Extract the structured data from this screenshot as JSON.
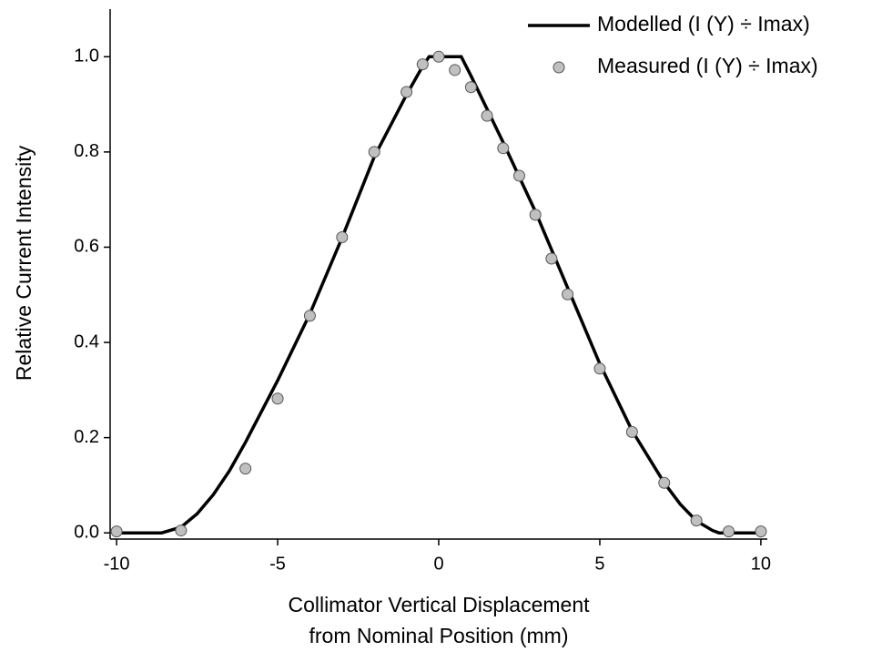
{
  "chart_data": {
    "type": "line_scatter",
    "xlabel": [
      "Collimator Vertical Displacement",
      "from Nominal Position (mm)"
    ],
    "ylabel": "Relative Current Intensity",
    "xlim": [
      -10.2,
      10.2
    ],
    "ylim": [
      -0.013,
      1.1
    ],
    "xticks": [
      -10,
      -5,
      0,
      5,
      10
    ],
    "yticks": [
      {
        "value": 0,
        "label": "0.0"
      },
      0.2,
      0.4,
      0.6,
      0.8,
      {
        "value": 1,
        "label": "1.0"
      }
    ],
    "grid": false,
    "legend": "upper right",
    "series": [
      {
        "name": "Modelled (I (Y) ÷ Imax)",
        "kind": "line",
        "color": "#000000",
        "x": [
          -10,
          -9,
          -8.6,
          -8,
          -7.5,
          -7,
          -6.5,
          -6,
          -5,
          -4,
          -3,
          -2,
          -1,
          -0.5,
          -0.3,
          0.7,
          1,
          1.5,
          2,
          3,
          4,
          5,
          6,
          7,
          7.5,
          8,
          8.5,
          8.7,
          10
        ],
        "values": [
          0,
          0,
          0,
          0.012,
          0.04,
          0.08,
          0.13,
          0.19,
          0.32,
          0.46,
          0.62,
          0.79,
          0.92,
          0.98,
          1,
          1,
          0.96,
          0.89,
          0.82,
          0.675,
          0.515,
          0.355,
          0.215,
          0.105,
          0.06,
          0.025,
          0.005,
          0,
          0
        ]
      },
      {
        "name": "Measured (I (Y) ÷ Imax)",
        "kind": "scatter",
        "color": "#c0c0c0",
        "x": [
          -10,
          -8,
          -6,
          -5,
          -4,
          -3,
          -2,
          -1,
          -0.5,
          0,
          0.5,
          1,
          1.5,
          2,
          2.5,
          3,
          3.5,
          4,
          5,
          6,
          7,
          8,
          9,
          10
        ],
        "values": [
          0.003,
          0.005,
          0.135,
          0.282,
          0.456,
          0.621,
          0.8,
          0.926,
          0.984,
          1.0,
          0.972,
          0.936,
          0.876,
          0.808,
          0.75,
          0.668,
          0.576,
          0.501,
          0.345,
          0.212,
          0.105,
          0.026,
          0.003,
          0.003
        ]
      }
    ]
  }
}
